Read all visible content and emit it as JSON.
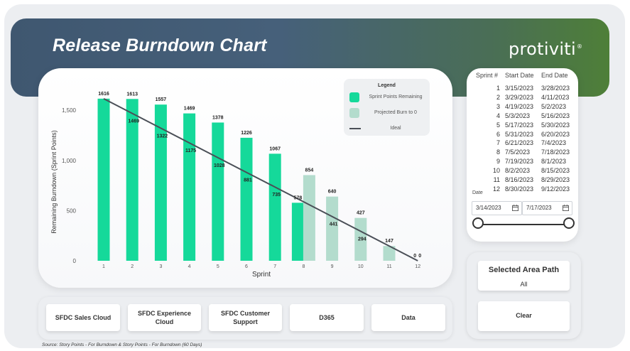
{
  "header": {
    "title": "Release Burndown Chart",
    "logo_text": "protiviti",
    "logo_mark": "®"
  },
  "colors": {
    "banner_left": "#3f5770",
    "banner_right": "#4e7f38",
    "remaining_bar": "#15d99a",
    "projected_bar": "#b3dccd",
    "ideal_line": "#4a4f57"
  },
  "legend": {
    "title": "Legend",
    "items": [
      {
        "label": "Sprint Points Remaining",
        "icon": "green-square"
      },
      {
        "label": "Projected Burn to 0",
        "icon": "light-green-square"
      },
      {
        "label": "Ideal",
        "icon": "dark-line"
      }
    ]
  },
  "chart_data": {
    "type": "bar",
    "xlabel": "Sprint",
    "ylabel": "Remaining Burndown (Sprint Points)",
    "ylim": [
      0,
      1700
    ],
    "y_ticks": [
      0,
      500,
      1000,
      1500
    ],
    "y_tick_labels": [
      "0",
      "500",
      "1,000",
      "1,500"
    ],
    "categories": [
      "1",
      "2",
      "3",
      "4",
      "5",
      "6",
      "7",
      "8",
      "9",
      "10",
      "11",
      "12"
    ],
    "series": [
      {
        "name": "Sprint Points Remaining",
        "kind": "bar",
        "values": [
          1616,
          1613,
          1557,
          1469,
          1378,
          1226,
          1067,
          578,
          null,
          null,
          null,
          null
        ],
        "labels": [
          "1616",
          "1613",
          "1557",
          "1469",
          "1378",
          "1226",
          "1067",
          "578",
          "",
          "",
          "",
          ""
        ]
      },
      {
        "name": "Projected Burn to 0",
        "kind": "bar",
        "values": [
          null,
          null,
          null,
          null,
          null,
          null,
          null,
          854,
          640,
          427,
          147,
          0
        ],
        "labels": [
          "",
          "",
          "",
          "",
          "",
          "",
          "",
          "854",
          "640",
          "427",
          "147",
          "0"
        ]
      },
      {
        "name": "Ideal",
        "kind": "line",
        "values": [
          1616,
          1469,
          1322,
          1175,
          1028,
          881,
          735,
          588,
          441,
          294,
          147,
          0
        ],
        "labels": [
          "",
          "1469",
          "1322",
          "1175",
          "1028",
          "881",
          "735",
          "",
          "441",
          "294",
          "",
          "0"
        ]
      }
    ],
    "grid": false,
    "legend_position": "top-right"
  },
  "sprints": {
    "headers": [
      "Sprint #",
      "Start Date",
      "End Date"
    ],
    "rows": [
      [
        "1",
        "3/15/2023",
        "3/28/2023"
      ],
      [
        "2",
        "3/29/2023",
        "4/11/2023"
      ],
      [
        "3",
        "4/19/2023",
        "5/2/2023"
      ],
      [
        "4",
        "5/3/2023",
        "5/16/2023"
      ],
      [
        "5",
        "5/17/2023",
        "5/30/2023"
      ],
      [
        "6",
        "5/31/2023",
        "6/20/2023"
      ],
      [
        "7",
        "6/21/2023",
        "7/4/2023"
      ],
      [
        "8",
        "7/5/2023",
        "7/18/2023"
      ],
      [
        "9",
        "7/19/2023",
        "8/1/2023"
      ],
      [
        "10",
        "8/2/2023",
        "8/15/2023"
      ],
      [
        "11",
        "8/16/2023",
        "8/29/2023"
      ],
      [
        "12",
        "8/30/2023",
        "9/12/2023"
      ]
    ]
  },
  "date_filter": {
    "label": "Date",
    "start": "3/14/2023",
    "end": "7/17/2023",
    "icon": "calendar-icon"
  },
  "area_path": {
    "title": "Selected Area Path",
    "value": "All",
    "clear_label": "Clear"
  },
  "filters": [
    "SFDC Sales Cloud",
    "SFDC Experience Cloud",
    "SFDC Customer Support",
    "D365",
    "Data"
  ],
  "footer": {
    "source": "Source: Story Points - For Burndown & Story Points - For Burndown (60 Days)"
  }
}
